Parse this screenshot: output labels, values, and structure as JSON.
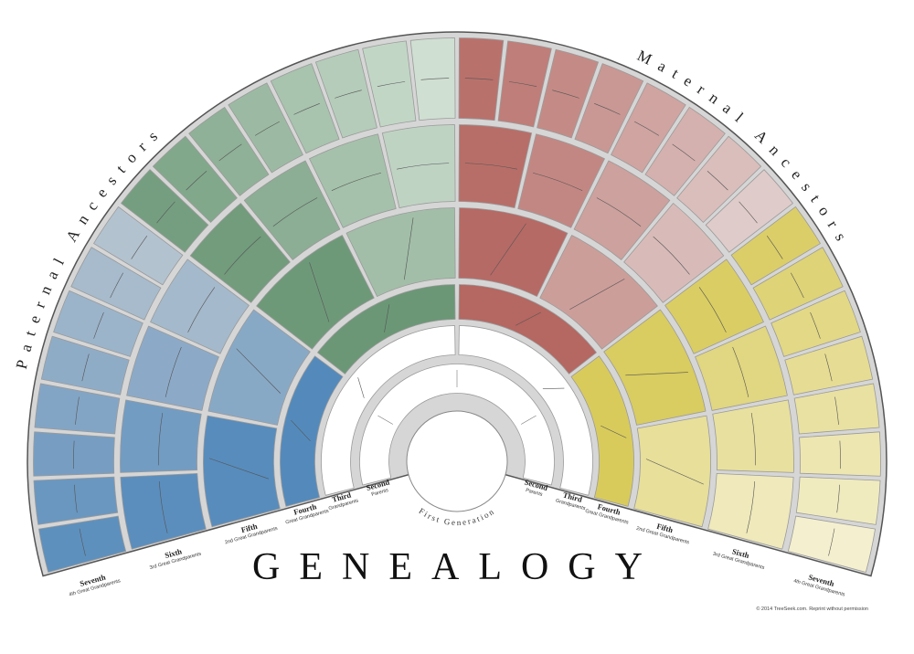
{
  "title": "GENEALOGY",
  "paternal_label": "Paternal Ancestors",
  "maternal_label": "Maternal Ancestors",
  "first_generation": "First Generation",
  "generations": [
    {
      "name": "Second",
      "subtitle": "Parents"
    },
    {
      "name": "Third",
      "subtitle": "Grandparents"
    },
    {
      "name": "Fourth",
      "subtitle": "Great Grandparents"
    },
    {
      "name": "Fifth",
      "subtitle": "2nd Great Grandparents"
    },
    {
      "name": "Sixth",
      "subtitle": "3rd Great Grandparents"
    },
    {
      "name": "Seventh",
      "subtitle": "4th Great Grandparents"
    }
  ],
  "copyright": "© 2014 TreeSeek.com. Reprint without permission"
}
